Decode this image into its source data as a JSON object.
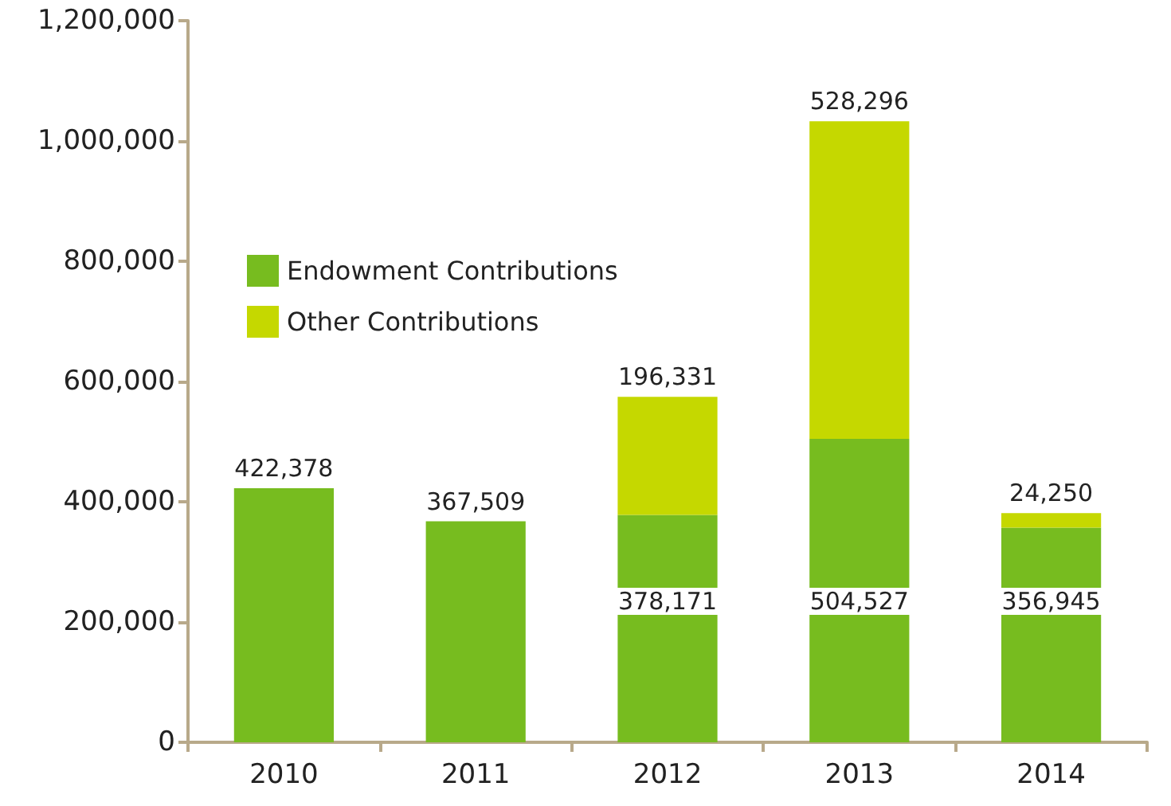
{
  "chart_data": {
    "type": "bar",
    "stacked": true,
    "categories": [
      "2010",
      "2011",
      "2012",
      "2013",
      "2014"
    ],
    "series": [
      {
        "name": "Endowment Contributions",
        "color": "#77bc1f",
        "values": [
          422378,
          367509,
          378171,
          504527,
          356945
        ],
        "value_labels": [
          "422,378",
          "367,509",
          "378,171",
          "504,527",
          "356,945"
        ]
      },
      {
        "name": "Other Contributions",
        "color": "#c5d800",
        "values": [
          null,
          null,
          196331,
          528296,
          24250
        ],
        "value_labels": [
          null,
          null,
          "196,331",
          "528,296",
          "24,250"
        ]
      }
    ],
    "ylim": [
      0,
      1200000
    ],
    "yticks": [
      {
        "value": 0,
        "label": "0"
      },
      {
        "value": 200000,
        "label": "200,000"
      },
      {
        "value": 400000,
        "label": "400,000"
      },
      {
        "value": 600000,
        "label": "600,000"
      },
      {
        "value": 800000,
        "label": "800,000"
      },
      {
        "value": 1000000,
        "label": "1,000,000"
      },
      {
        "value": 1200000,
        "label": "1,200,000"
      }
    ],
    "legend": "top left",
    "grid": false
  }
}
